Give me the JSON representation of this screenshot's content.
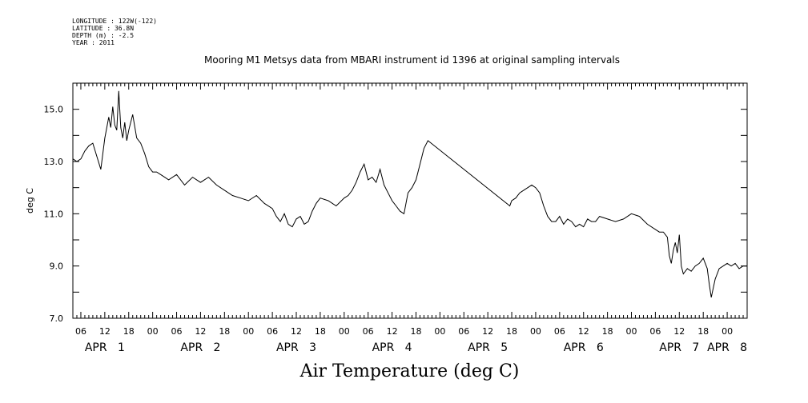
{
  "meta": {
    "longitude": "LONGITUDE : 122W(-122)",
    "latitude": "LATITUDE : 36.8N",
    "depth": "DEPTH (m) : -2.5",
    "year": "YEAR : 2011"
  },
  "chart_data": {
    "type": "line",
    "title": "Mooring M1 Metsys data from MBARI instrument id 1396 at original sampling intervals",
    "xlabel": "Air Temperature (deg C)",
    "ylabel": "deg C",
    "x_unit": "hours",
    "x_range": [
      4,
      173
    ],
    "ylim": [
      7.0,
      16.0
    ],
    "y_ticks": [
      7.0,
      9.0,
      11.0,
      13.0,
      15.0
    ],
    "y_tick_labels": [
      "7.0",
      "9.0",
      "11.0",
      "13.0",
      "15.0"
    ],
    "x_hour_ticks": [
      {
        "h": 6,
        "label": "06"
      },
      {
        "h": 12,
        "label": "12"
      },
      {
        "h": 18,
        "label": "18"
      },
      {
        "h": 24,
        "label": "00"
      },
      {
        "h": 30,
        "label": "06"
      },
      {
        "h": 36,
        "label": "12"
      },
      {
        "h": 42,
        "label": "18"
      },
      {
        "h": 48,
        "label": "00"
      },
      {
        "h": 54,
        "label": "06"
      },
      {
        "h": 60,
        "label": "12"
      },
      {
        "h": 66,
        "label": "18"
      },
      {
        "h": 72,
        "label": "00"
      },
      {
        "h": 78,
        "label": "06"
      },
      {
        "h": 84,
        "label": "12"
      },
      {
        "h": 90,
        "label": "18"
      },
      {
        "h": 96,
        "label": "00"
      },
      {
        "h": 102,
        "label": "06"
      },
      {
        "h": 108,
        "label": "12"
      },
      {
        "h": 114,
        "label": "18"
      },
      {
        "h": 120,
        "label": "00"
      },
      {
        "h": 126,
        "label": "06"
      },
      {
        "h": 132,
        "label": "12"
      },
      {
        "h": 138,
        "label": "18"
      },
      {
        "h": 144,
        "label": "00"
      },
      {
        "h": 150,
        "label": "06"
      },
      {
        "h": 156,
        "label": "12"
      },
      {
        "h": 162,
        "label": "18"
      },
      {
        "h": 168,
        "label": "00"
      }
    ],
    "day_labels": [
      {
        "h": 12,
        "label": "APR   1"
      },
      {
        "h": 36,
        "label": "APR   2"
      },
      {
        "h": 60,
        "label": "APR   3"
      },
      {
        "h": 84,
        "label": "APR   4"
      },
      {
        "h": 108,
        "label": "APR   5"
      },
      {
        "h": 132,
        "label": "APR   6"
      },
      {
        "h": 156,
        "label": "APR   7"
      },
      {
        "h": 168,
        "label": "APR   8"
      }
    ],
    "grid": false,
    "series": [
      {
        "color": "#000000",
        "x": [
          4,
          5,
          6,
          7,
          8,
          9,
          10,
          11,
          11.5,
          12,
          13,
          13.5,
          14,
          14.5,
          15,
          15.5,
          16,
          16.5,
          17,
          17.5,
          18,
          19,
          20,
          21,
          22,
          23,
          24,
          25,
          26,
          27,
          28,
          30,
          32,
          34,
          36,
          38,
          40,
          42,
          44,
          46,
          48,
          50,
          52,
          54,
          55,
          56,
          57,
          58,
          59,
          60,
          61,
          62,
          63,
          64,
          65,
          66,
          68,
          70,
          72,
          73,
          74,
          75,
          76,
          77,
          78,
          79,
          80,
          81,
          82,
          83,
          84,
          85,
          86,
          87,
          88,
          89,
          90,
          91,
          92,
          93,
          113.5,
          114,
          115,
          116,
          117,
          118,
          119,
          120,
          121,
          122,
          123,
          124,
          125,
          126,
          127,
          128,
          129,
          130,
          131,
          132,
          133,
          134,
          135,
          136,
          138,
          140,
          142,
          144,
          146,
          148,
          150,
          151,
          152,
          153,
          153.5,
          154,
          154.5,
          155,
          155.5,
          156,
          156.5,
          157,
          158,
          159,
          160,
          161,
          162,
          163,
          163.5,
          164,
          165,
          166,
          167,
          168,
          169,
          170,
          171,
          172,
          173
        ],
        "values": [
          13.1,
          13.0,
          13.1,
          13.4,
          13.6,
          13.7,
          13.2,
          12.7,
          13.3,
          13.9,
          14.7,
          14.3,
          15.1,
          14.4,
          14.2,
          15.7,
          14.3,
          13.9,
          14.5,
          13.8,
          14.2,
          14.8,
          13.9,
          13.7,
          13.3,
          12.8,
          12.6,
          12.6,
          12.5,
          12.4,
          12.3,
          12.5,
          12.1,
          12.4,
          12.2,
          12.4,
          12.1,
          11.9,
          11.7,
          11.6,
          11.5,
          11.7,
          11.4,
          11.2,
          10.9,
          10.7,
          11.0,
          10.6,
          10.5,
          10.8,
          10.9,
          10.6,
          10.7,
          11.1,
          11.4,
          11.6,
          11.5,
          11.3,
          11.6,
          11.7,
          11.9,
          12.2,
          12.6,
          12.9,
          12.3,
          12.4,
          12.2,
          12.7,
          12.1,
          11.8,
          11.5,
          11.3,
          11.1,
          11.0,
          11.8,
          12.0,
          12.3,
          12.9,
          13.5,
          13.8,
          11.3,
          11.5,
          11.6,
          11.8,
          11.9,
          12.0,
          12.1,
          12.0,
          11.8,
          11.3,
          10.9,
          10.7,
          10.7,
          10.9,
          10.6,
          10.8,
          10.7,
          10.5,
          10.6,
          10.5,
          10.8,
          10.7,
          10.7,
          10.9,
          10.8,
          10.7,
          10.8,
          11.0,
          10.9,
          10.6,
          10.4,
          10.3,
          10.3,
          10.1,
          9.4,
          9.1,
          9.6,
          9.9,
          9.5,
          10.2,
          9.0,
          8.7,
          8.9,
          8.8,
          9.0,
          9.1,
          9.3,
          8.9,
          8.3,
          7.8,
          8.5,
          8.9,
          9.0,
          9.1,
          9.0,
          9.1,
          8.9,
          9.0,
          9.0
        ]
      }
    ]
  }
}
